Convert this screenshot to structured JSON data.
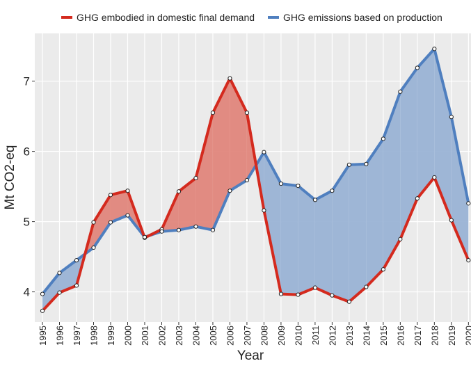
{
  "chart_data": {
    "type": "line",
    "x": [
      1995,
      1996,
      1997,
      1998,
      1999,
      2000,
      2001,
      2002,
      2003,
      2004,
      2005,
      2006,
      2007,
      2008,
      2009,
      2010,
      2011,
      2012,
      2013,
      2014,
      2015,
      2016,
      2017,
      2018,
      2019,
      2020
    ],
    "series": [
      {
        "name": "GHG embodied in domestic final demand",
        "color": "#d42a1e",
        "fill": "#e0867c",
        "values": [
          3.73,
          3.99,
          4.09,
          4.99,
          5.38,
          5.44,
          4.77,
          4.89,
          5.43,
          5.62,
          6.55,
          7.04,
          6.55,
          5.16,
          3.97,
          3.96,
          4.06,
          3.95,
          3.86,
          4.07,
          4.32,
          4.75,
          5.33,
          5.63,
          5.02,
          4.45
        ]
      },
      {
        "name": "GHG emissions based on production",
        "color": "#4f7fbf",
        "fill": "#9ab3d5",
        "values": [
          3.97,
          4.27,
          4.45,
          4.63,
          4.99,
          5.09,
          4.78,
          4.86,
          4.88,
          4.93,
          4.88,
          5.44,
          5.59,
          5.99,
          5.54,
          5.51,
          5.31,
          5.44,
          5.81,
          5.82,
          6.18,
          6.85,
          7.19,
          7.46,
          6.49,
          5.26
        ]
      }
    ],
    "xlabel": "Year",
    "ylabel": "Mt CO2-eq",
    "xlim": [
      1994.55,
      2020.15
    ],
    "ylim": [
      3.57,
      7.68
    ],
    "xticks": [
      1995,
      1996,
      1997,
      1998,
      1999,
      2000,
      2001,
      2002,
      2003,
      2004,
      2005,
      2006,
      2007,
      2008,
      2009,
      2010,
      2011,
      2012,
      2013,
      2014,
      2015,
      2016,
      2017,
      2018,
      2019,
      2020
    ],
    "yticks": [
      4,
      5,
      6,
      7
    ],
    "grid": true,
    "legend": "top"
  }
}
